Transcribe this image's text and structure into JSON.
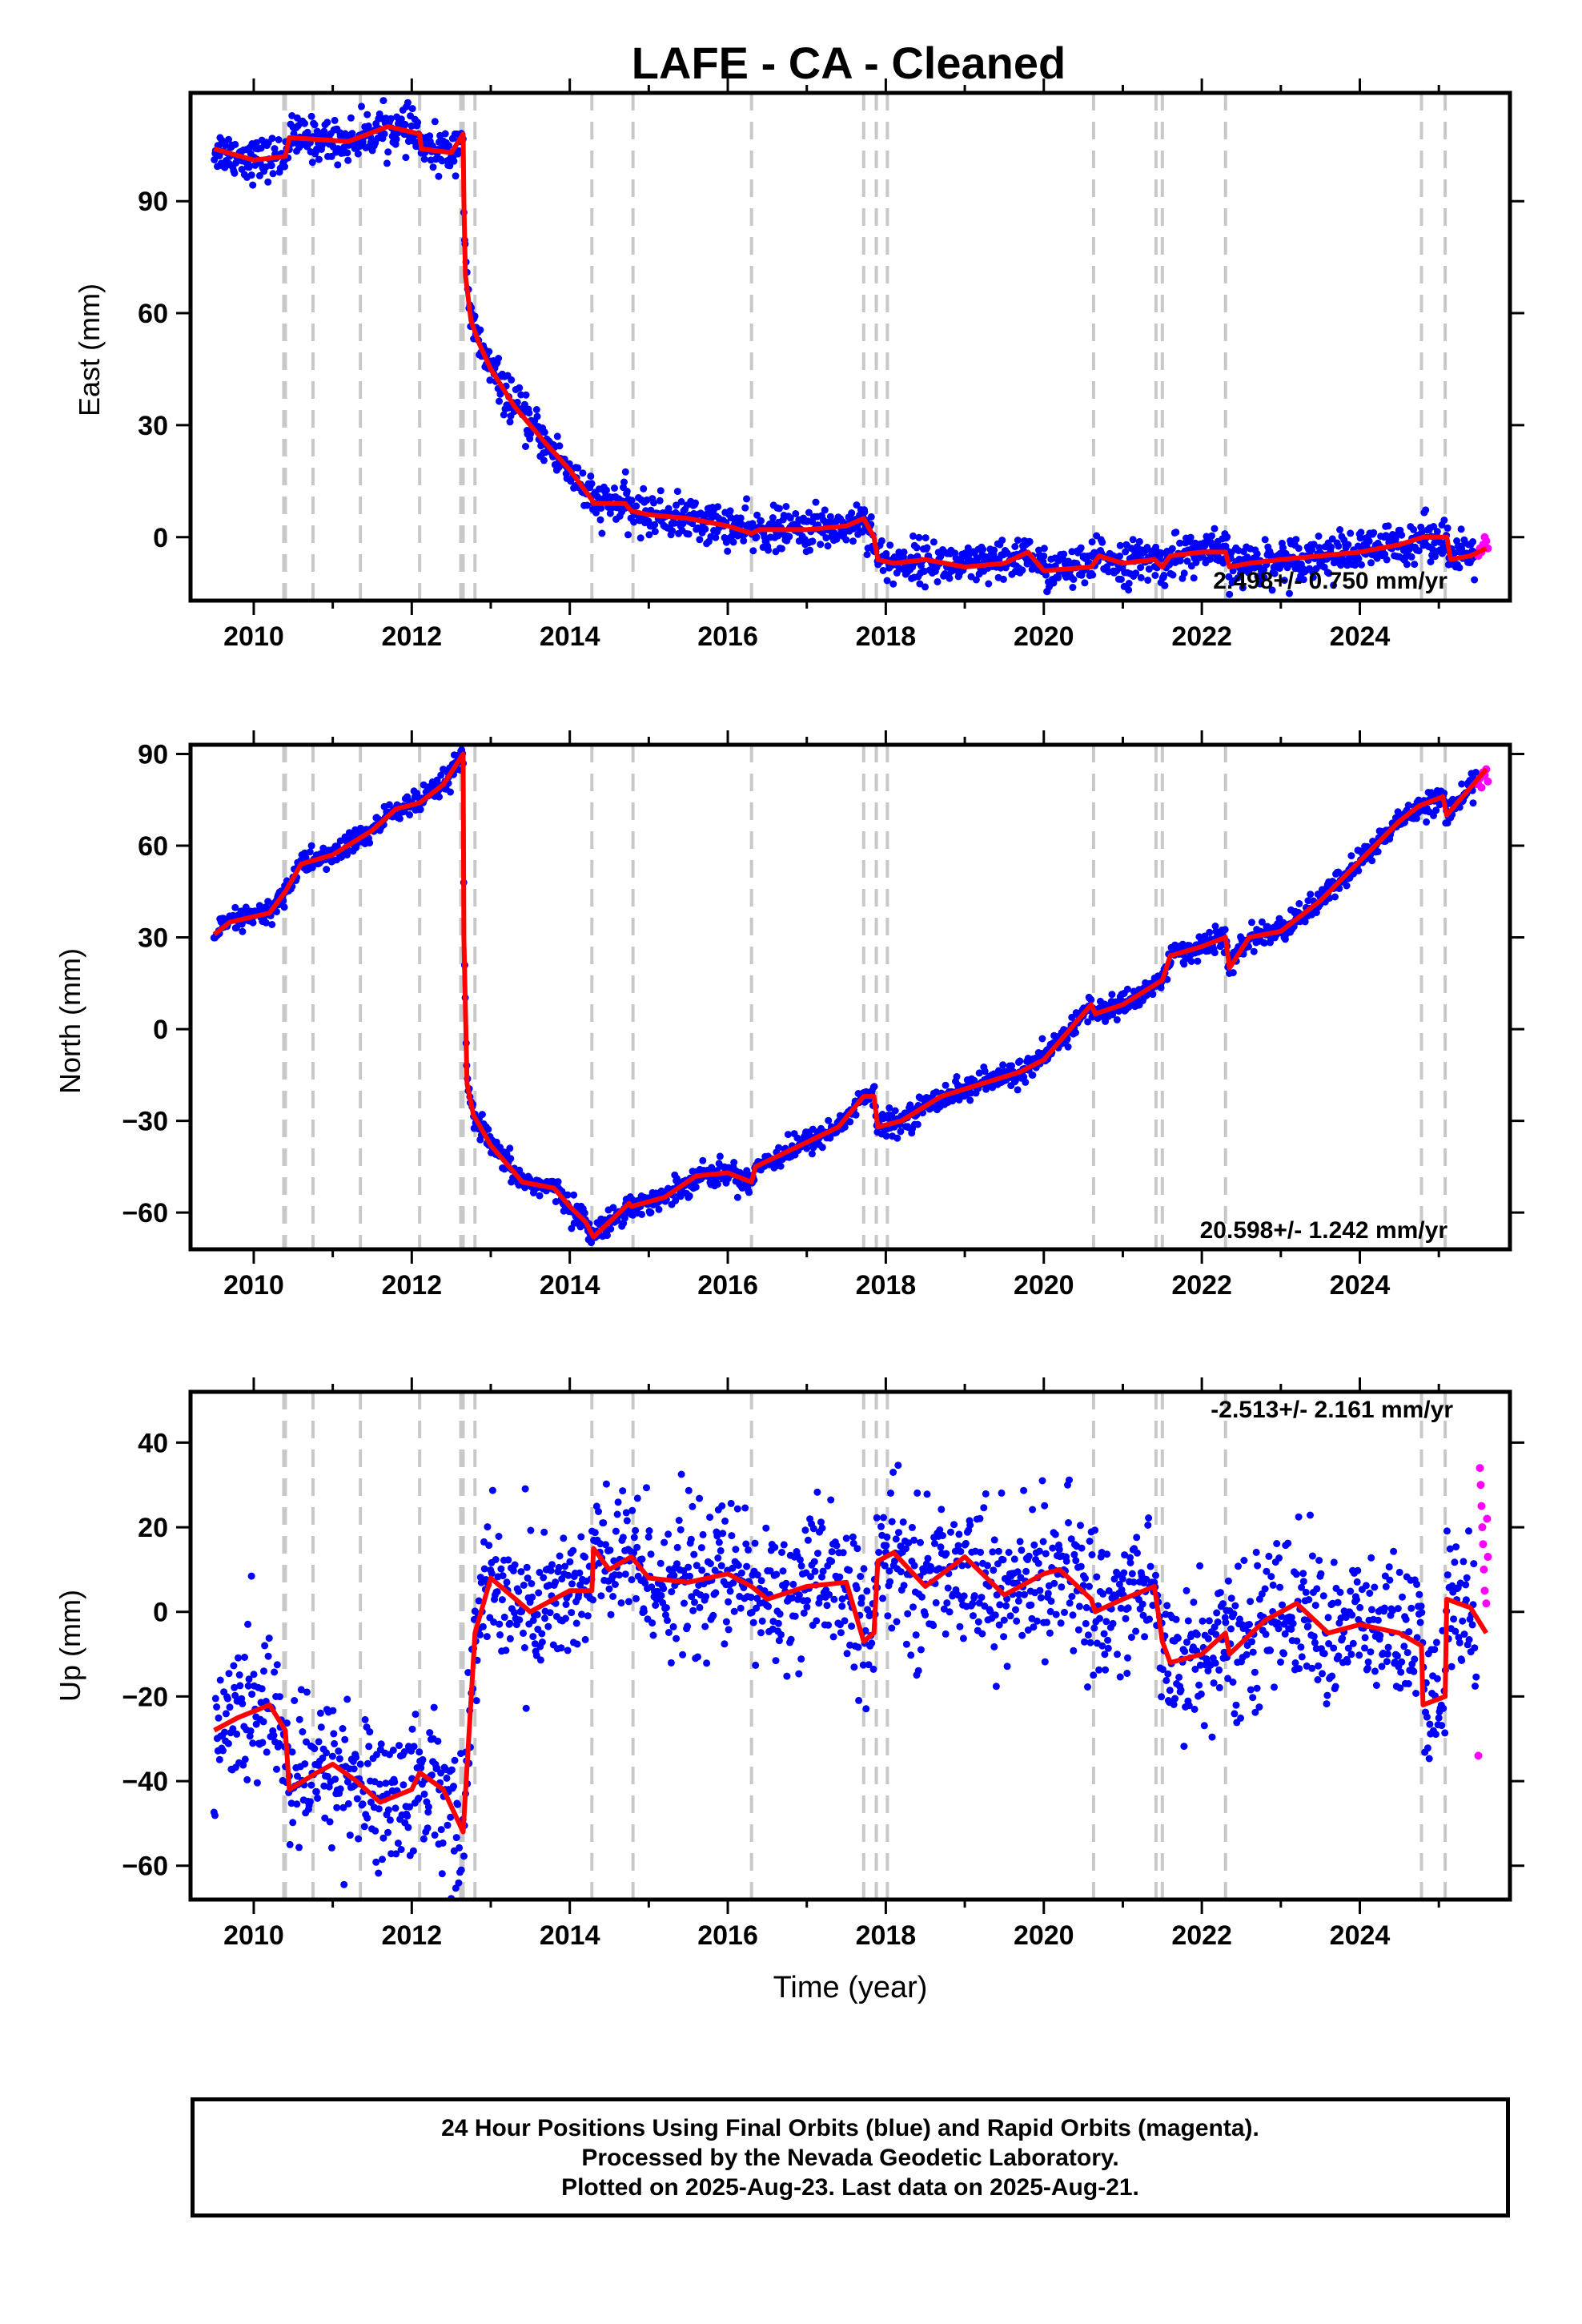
{
  "title": "LAFE  - CA - Cleaned",
  "footer": {
    "line1": "24 Hour Positions Using Final Orbits (blue) and Rapid Orbits (magenta).",
    "line2": "Processed by the Nevada Geodetic Laboratory.",
    "line3": "Plotted on 2025-Aug-23. Last data on 2025-Aug-21."
  },
  "colors": {
    "final": "#0000ff",
    "rapid": "#ff00ff",
    "model": "#ff0000",
    "steps": "#c8c8c8"
  },
  "chart_data": [
    {
      "type": "scatter",
      "id": "east",
      "ylabel": "East (mm)",
      "xlabel": "",
      "rate": "2.498+/- 0.750 mm/yr",
      "xlim": [
        2009.2,
        2025.9
      ],
      "ylim": [
        -17,
        119
      ],
      "yticks": [
        0,
        30,
        60,
        90
      ],
      "xticks": [
        2010,
        2012,
        2014,
        2016,
        2018,
        2020,
        2022,
        2024
      ],
      "noise": 2.8,
      "model_x": [
        2009.5,
        2010.0,
        2010.4,
        2010.45,
        2011.2,
        2011.7,
        2012.1,
        2012.12,
        2012.5,
        2012.65,
        2012.66,
        2012.68,
        2012.75,
        2012.85,
        2013.0,
        2013.3,
        2013.7,
        2014.0,
        2014.28,
        2014.3,
        2014.7,
        2014.78,
        2015.0,
        2015.5,
        2016.0,
        2016.3,
        2016.4,
        2017.0,
        2017.5,
        2017.72,
        2017.85,
        2017.9,
        2018.1,
        2018.5,
        2019.0,
        2019.5,
        2019.8,
        2020.0,
        2020.6,
        2020.7,
        2021.0,
        2021.4,
        2021.5,
        2021.6,
        2022.0,
        2022.3,
        2022.35,
        2022.6,
        2023.0,
        2023.5,
        2024.0,
        2024.5,
        2024.8,
        2025.1,
        2025.15,
        2025.4,
        2025.6
      ],
      "model_y": [
        104,
        101,
        102,
        107,
        106,
        110,
        108,
        104,
        103,
        108,
        90,
        70,
        58,
        52,
        45,
        35,
        25,
        18,
        10,
        9,
        9,
        7,
        6,
        5,
        3,
        1,
        2,
        2,
        3,
        5,
        0,
        -6,
        -7,
        -6,
        -8,
        -7,
        -4,
        -9,
        -8,
        -5,
        -7,
        -6,
        -8,
        -5,
        -4,
        -4,
        -8,
        -7,
        -6,
        -5,
        -4,
        -2,
        0,
        0,
        -6,
        -5,
        -3
      ],
      "steps": [
        2010.38,
        2010.4,
        2010.75,
        2011.35,
        2012.1,
        2012.62,
        2012.65,
        2012.8,
        2014.28,
        2014.8,
        2016.3,
        2017.72,
        2017.88,
        2018.02,
        2020.63,
        2021.42,
        2021.5,
        2022.3,
        2024.78,
        2025.08
      ],
      "rapid": [
        [
          2025.5,
          -5
        ],
        [
          2025.52,
          -3
        ],
        [
          2025.54,
          -4
        ],
        [
          2025.56,
          -2
        ],
        [
          2025.58,
          0
        ],
        [
          2025.6,
          -1
        ],
        [
          2025.62,
          -3
        ]
      ]
    },
    {
      "type": "scatter",
      "id": "north",
      "ylabel": "North (mm)",
      "xlabel": "",
      "rate": "20.598+/- 1.242 mm/yr",
      "xlim": [
        2009.2,
        2025.9
      ],
      "ylim": [
        -72,
        93
      ],
      "yticks": [
        -60,
        -30,
        0,
        30,
        60,
        90
      ],
      "xticks": [
        2010,
        2012,
        2014,
        2016,
        2018,
        2020,
        2022,
        2024
      ],
      "noise": 2.0,
      "model_x": [
        2009.5,
        2009.7,
        2010.2,
        2010.4,
        2010.6,
        2011.0,
        2011.5,
        2011.8,
        2012.1,
        2012.4,
        2012.65,
        2012.66,
        2012.7,
        2012.78,
        2013.0,
        2013.4,
        2013.8,
        2014.0,
        2014.2,
        2014.3,
        2014.75,
        2014.78,
        2015.2,
        2015.6,
        2016.0,
        2016.3,
        2016.35,
        2017.0,
        2017.4,
        2017.72,
        2017.85,
        2017.9,
        2018.2,
        2018.7,
        2019.2,
        2019.7,
        2020.0,
        2020.6,
        2020.65,
        2021.0,
        2021.5,
        2021.6,
        2022.0,
        2022.3,
        2022.35,
        2022.6,
        2023.0,
        2023.5,
        2024.0,
        2024.5,
        2024.75,
        2025.05,
        2025.1,
        2025.6
      ],
      "model_y": [
        31,
        35,
        38,
        45,
        54,
        57,
        65,
        72,
        74,
        80,
        90,
        30,
        -18,
        -28,
        -38,
        -50,
        -52,
        -58,
        -63,
        -68,
        -57,
        -58,
        -55,
        -48,
        -47,
        -50,
        -45,
        -37,
        -32,
        -22,
        -22,
        -32,
        -30,
        -22,
        -18,
        -14,
        -10,
        8,
        5,
        8,
        16,
        24,
        27,
        30,
        20,
        30,
        32,
        42,
        55,
        68,
        73,
        76,
        70,
        85
      ],
      "steps": [
        2010.38,
        2010.4,
        2010.75,
        2011.35,
        2012.1,
        2012.62,
        2012.65,
        2012.8,
        2014.28,
        2014.8,
        2016.3,
        2017.72,
        2017.88,
        2018.02,
        2020.63,
        2021.42,
        2021.5,
        2022.3,
        2024.78,
        2025.08
      ],
      "rapid": [
        [
          2025.5,
          80
        ],
        [
          2025.52,
          82
        ],
        [
          2025.54,
          79
        ],
        [
          2025.56,
          84
        ],
        [
          2025.58,
          83
        ],
        [
          2025.6,
          85
        ],
        [
          2025.62,
          81
        ]
      ]
    },
    {
      "type": "scatter",
      "id": "up",
      "ylabel": "Up (mm)",
      "xlabel": "Time (year)",
      "rate": "-2.513+/- 2.161 mm/yr",
      "xlim": [
        2009.2,
        2025.9
      ],
      "ylim": [
        -68,
        52
      ],
      "yticks": [
        -60,
        -40,
        -20,
        0,
        20,
        40
      ],
      "xticks": [
        2010,
        2012,
        2014,
        2016,
        2018,
        2020,
        2022,
        2024
      ],
      "noise": 8.5,
      "model_x": [
        2009.5,
        2009.8,
        2010.2,
        2010.4,
        2010.45,
        2010.8,
        2011.0,
        2011.3,
        2011.6,
        2012.0,
        2012.1,
        2012.4,
        2012.6,
        2012.65,
        2012.8,
        2013.0,
        2013.5,
        2014.0,
        2014.28,
        2014.3,
        2014.5,
        2014.78,
        2015.0,
        2015.5,
        2016.0,
        2016.3,
        2016.5,
        2017.0,
        2017.5,
        2017.72,
        2017.85,
        2017.9,
        2018.1,
        2018.5,
        2019.0,
        2019.5,
        2020.0,
        2020.2,
        2020.6,
        2020.65,
        2021.0,
        2021.4,
        2021.5,
        2021.6,
        2022.0,
        2022.3,
        2022.35,
        2022.8,
        2023.2,
        2023.6,
        2024.0,
        2024.5,
        2024.78,
        2024.8,
        2025.08,
        2025.1,
        2025.4,
        2025.6
      ],
      "model_y": [
        -28,
        -25,
        -22,
        -28,
        -42,
        -38,
        -36,
        -40,
        -45,
        -42,
        -38,
        -42,
        -50,
        -52,
        -5,
        8,
        0,
        5,
        5,
        15,
        10,
        13,
        8,
        7,
        9,
        6,
        3,
        6,
        7,
        -7,
        -5,
        12,
        14,
        6,
        13,
        4,
        9,
        10,
        3,
        0,
        3,
        6,
        -7,
        -12,
        -10,
        -5,
        -10,
        -2,
        2,
        -5,
        -3,
        -5,
        -8,
        -22,
        -20,
        3,
        1,
        -5
      ],
      "steps": [
        2010.38,
        2010.4,
        2010.75,
        2011.35,
        2012.1,
        2012.62,
        2012.65,
        2012.8,
        2014.28,
        2014.8,
        2016.3,
        2017.72,
        2017.88,
        2018.02,
        2020.63,
        2021.42,
        2021.5,
        2022.3,
        2024.78,
        2025.08
      ],
      "rapid": [
        [
          2025.5,
          -34
        ],
        [
          2025.52,
          34
        ],
        [
          2025.53,
          30
        ],
        [
          2025.54,
          25
        ],
        [
          2025.55,
          20
        ],
        [
          2025.56,
          16
        ],
        [
          2025.57,
          10
        ],
        [
          2025.58,
          5
        ],
        [
          2025.6,
          2
        ],
        [
          2025.61,
          22
        ],
        [
          2025.62,
          13
        ]
      ]
    }
  ]
}
